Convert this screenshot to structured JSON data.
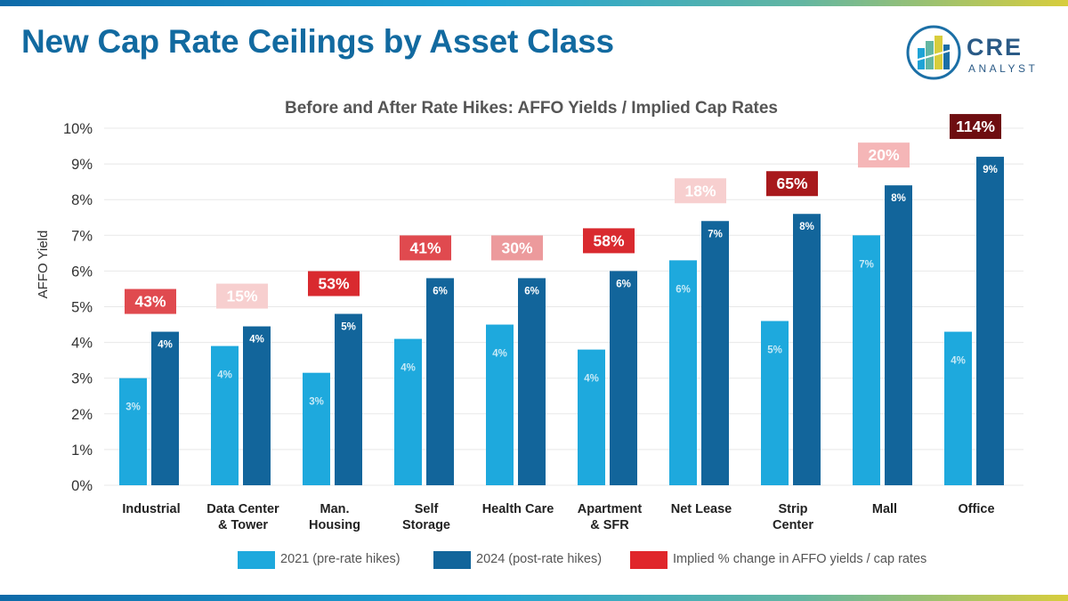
{
  "header": {
    "title": "New Cap Rate Ceilings by Asset Class",
    "logo": {
      "word": "CRE",
      "sub": "ANALYST"
    }
  },
  "colors": {
    "pre": "#1ea9dd",
    "post": "#12659b",
    "change_legend": "#e0262b",
    "title": "#126aa0",
    "grid": "#e8e8e8"
  },
  "chart_data": {
    "type": "bar",
    "title": "Before and After Rate Hikes: AFFO Yields / Implied Cap Rates",
    "xlabel": "",
    "ylabel": "AFFO Yield",
    "ylim": [
      0,
      10
    ],
    "yticks": [
      "0%",
      "1%",
      "2%",
      "3%",
      "4%",
      "5%",
      "6%",
      "7%",
      "8%",
      "9%",
      "10%"
    ],
    "grid": true,
    "legend_position": "bottom",
    "categories": [
      [
        "Industrial"
      ],
      [
        "Data Center",
        "& Tower"
      ],
      [
        "Man.",
        "Housing"
      ],
      [
        "Self",
        "Storage"
      ],
      [
        "Health Care"
      ],
      [
        "Apartment",
        "& SFR"
      ],
      [
        "Net Lease"
      ],
      [
        "Strip",
        "Center"
      ],
      [
        "Mall"
      ],
      [
        "Office"
      ]
    ],
    "series": [
      {
        "name": "2021 (pre-rate hikes)",
        "color": "#1ea9dd",
        "values": [
          3.0,
          3.9,
          3.15,
          4.1,
          4.5,
          3.8,
          6.3,
          4.6,
          7.0,
          4.3
        ],
        "labels": [
          "3%",
          "4%",
          "3%",
          "4%",
          "4%",
          "4%",
          "6%",
          "5%",
          "7%",
          "4%"
        ]
      },
      {
        "name": "2024 (post-rate hikes)",
        "color": "#12659b",
        "values": [
          4.3,
          4.45,
          4.8,
          5.8,
          5.8,
          6.0,
          7.4,
          7.6,
          8.4,
          9.2
        ],
        "labels": [
          "4%",
          "4%",
          "5%",
          "6%",
          "6%",
          "6%",
          "7%",
          "8%",
          "8%",
          "9%"
        ]
      }
    ],
    "implied_change": {
      "name": "Implied % change in AFFO yields / cap rates",
      "labels": [
        "43%",
        "15%",
        "53%",
        "41%",
        "30%",
        "58%",
        "18%",
        "65%",
        "20%",
        "114%"
      ],
      "colors": [
        "#e04a4f",
        "#f7cfcf",
        "#d92a2f",
        "#e04a4f",
        "#ec9a9c",
        "#d92a2f",
        "#f7cfcf",
        "#a8191c",
        "#f5b6b7",
        "#6e0d10"
      ],
      "text_colors": [
        "#ffffff",
        "#ffffff",
        "#ffffff",
        "#ffffff",
        "#ffffff",
        "#ffffff",
        "#ffffff",
        "#ffffff",
        "#ffffff",
        "#ffffff"
      ]
    }
  }
}
